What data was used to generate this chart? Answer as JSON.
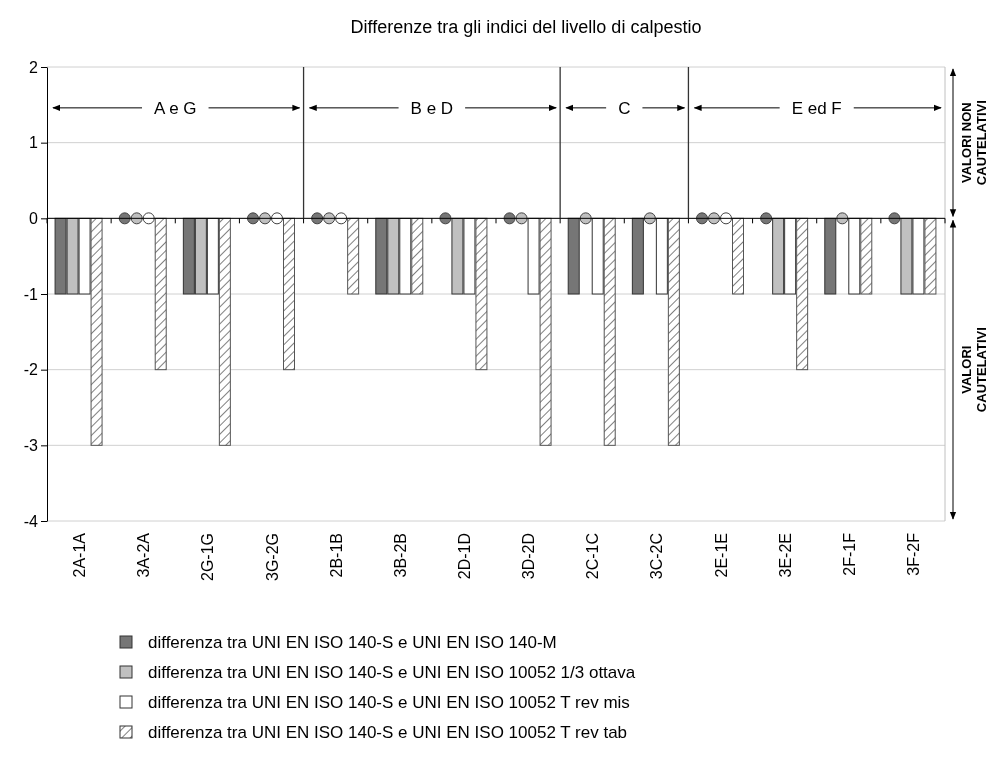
{
  "chart_data": {
    "type": "bar",
    "title": "Differenze tra gli indici del livello di calpestio",
    "categories": [
      "2A-1A",
      "3A-2A",
      "2G-1G",
      "3G-2G",
      "2B-1B",
      "3B-2B",
      "2D-1D",
      "3D-2D",
      "2C-1C",
      "3C-2C",
      "2E-1E",
      "3E-2E",
      "2F-1F",
      "3F-2F"
    ],
    "series": [
      {
        "name": "differenza tra UNI EN ISO 140-S e UNI EN ISO 140-M",
        "color": "#767676",
        "values": [
          -1,
          0,
          -1,
          0,
          0,
          -1,
          0,
          0,
          -1,
          -1,
          0,
          0,
          -1,
          0
        ]
      },
      {
        "name": "differenza tra UNI EN ISO 140-S e UNI EN ISO 10052 1/3 ottava",
        "color": "#c0c0c0",
        "values": [
          -1,
          0,
          -1,
          0,
          0,
          -1,
          -1,
          0,
          0,
          0,
          0,
          -1,
          0,
          -1
        ]
      },
      {
        "name": "differenza tra UNI EN ISO 140-S e UNI EN ISO 10052 T rev mis",
        "color": "#ffffff",
        "values": [
          -1,
          0,
          -1,
          0,
          0,
          -1,
          -1,
          -1,
          -1,
          -1,
          0,
          -1,
          -1,
          -1
        ]
      },
      {
        "name": "differenza tra UNI EN ISO 140-S e UNI EN ISO 10052 T rev tab",
        "color": "#555555",
        "values": [
          -3,
          -2,
          -3,
          -2,
          -1,
          -1,
          -2,
          -3,
          -3,
          -3,
          -1,
          -2,
          -1,
          -1
        ]
      }
    ],
    "ylim": [
      -4,
      2
    ],
    "yticks": [
      -4,
      -3,
      -2,
      -1,
      0,
      1,
      2
    ],
    "grid": "y",
    "legend": "bottom",
    "annotations": [
      "A e G",
      "B e D",
      "C",
      "E ed F",
      "VALORI  NON CAUTELATIVI",
      "VALORI CAUTELATIVI"
    ]
  }
}
